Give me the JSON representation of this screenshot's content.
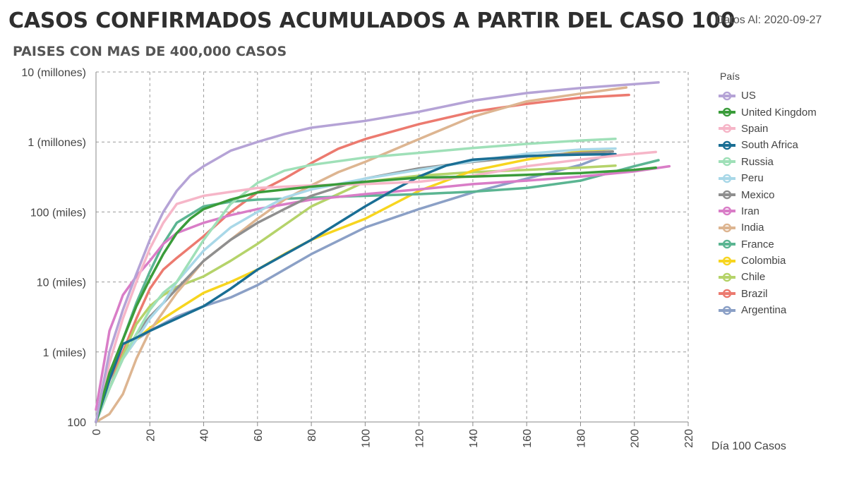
{
  "header": {
    "title": "CASOS CONFIRMADOS ACUMULADOS A PARTIR DEL CASO 100",
    "date_label": "Datos Al: 2020-09-27",
    "subtitle": "PAISES CON MAS DE 400,000 CASOS"
  },
  "legend": {
    "title": "País"
  },
  "chart_data": {
    "type": "line",
    "title": "CASOS CONFIRMADOS ACUMULADOS A PARTIR DEL CASO 100",
    "subtitle": "PAISES CON MAS DE 400,000 CASOS",
    "xlabel": "Día 100 Casos",
    "ylabel": "",
    "xlim": [
      0,
      220
    ],
    "ylim": [
      100,
      10000000
    ],
    "yscale": "log",
    "grid": true,
    "legend_position": "right",
    "x_ticks": [
      "0",
      "20",
      "40",
      "60",
      "80",
      "100",
      "120",
      "140",
      "160",
      "180",
      "200",
      "220"
    ],
    "y_ticks": [
      {
        "value": 100,
        "label": "100"
      },
      {
        "value": 1000,
        "label": "1 (miles)"
      },
      {
        "value": 10000,
        "label": "10 (miles)"
      },
      {
        "value": 100000,
        "label": "100 (miles)"
      },
      {
        "value": 1000000,
        "label": "1 (millones)"
      },
      {
        "value": 10000000,
        "label": "10 (millones)"
      }
    ],
    "series": [
      {
        "name": "US",
        "color": "#b5a3d6",
        "x": [
          0,
          5,
          10,
          15,
          20,
          25,
          30,
          35,
          40,
          50,
          60,
          70,
          80,
          100,
          120,
          140,
          160,
          180,
          200,
          209
        ],
        "y": [
          100,
          1000,
          4000,
          13000,
          40000,
          100000,
          200000,
          330000,
          450000,
          750000,
          1000000,
          1300000,
          1600000,
          2000000,
          2700000,
          3900000,
          5000000,
          5900000,
          6700000,
          7100000
        ]
      },
      {
        "name": "United Kingdom",
        "color": "#3a9c3a",
        "x": [
          0,
          5,
          10,
          15,
          20,
          25,
          30,
          35,
          40,
          50,
          60,
          80,
          100,
          120,
          140,
          160,
          180,
          200,
          208
        ],
        "y": [
          100,
          500,
          1500,
          4500,
          11000,
          25000,
          50000,
          80000,
          110000,
          150000,
          190000,
          230000,
          270000,
          310000,
          320000,
          340000,
          360000,
          400000,
          430000
        ]
      },
      {
        "name": "Spain",
        "color": "#f6b6c8",
        "x": [
          0,
          3,
          5,
          10,
          15,
          20,
          25,
          30,
          40,
          60,
          80,
          100,
          120,
          140,
          160,
          180,
          195,
          208
        ],
        "y": [
          100,
          300,
          700,
          3000,
          10000,
          30000,
          70000,
          130000,
          170000,
          220000,
          240000,
          250000,
          270000,
          330000,
          450000,
          560000,
          650000,
          720000
        ]
      },
      {
        "name": "South Africa",
        "color": "#1a6e94",
        "x": [
          0,
          5,
          10,
          15,
          20,
          30,
          40,
          50,
          60,
          80,
          100,
          110,
          120,
          130,
          140,
          160,
          180,
          193
        ],
        "y": [
          100,
          400,
          1300,
          1600,
          2000,
          3000,
          4500,
          8000,
          15000,
          40000,
          120000,
          200000,
          320000,
          460000,
          560000,
          630000,
          660000,
          670000
        ]
      },
      {
        "name": "Russia",
        "color": "#9fe0b8",
        "x": [
          0,
          5,
          10,
          15,
          20,
          25,
          30,
          40,
          50,
          60,
          70,
          80,
          100,
          120,
          140,
          160,
          180,
          193
        ],
        "y": [
          100,
          300,
          800,
          1800,
          4000,
          7000,
          10000,
          40000,
          130000,
          260000,
          390000,
          470000,
          600000,
          700000,
          820000,
          940000,
          1050000,
          1110000
        ]
      },
      {
        "name": "Peru",
        "color": "#a9d8e8",
        "x": [
          0,
          5,
          10,
          15,
          20,
          25,
          30,
          40,
          50,
          60,
          70,
          80,
          90,
          100,
          120,
          140,
          160,
          180,
          193
        ],
        "y": [
          100,
          300,
          800,
          1500,
          3000,
          5000,
          10000,
          28000,
          60000,
          100000,
          160000,
          210000,
          250000,
          300000,
          400000,
          530000,
          680000,
          780000,
          805000
        ]
      },
      {
        "name": "Mexico",
        "color": "#8f8f8f",
        "x": [
          0,
          5,
          10,
          15,
          20,
          25,
          30,
          40,
          50,
          60,
          70,
          80,
          100,
          120,
          140,
          160,
          180,
          192
        ],
        "y": [
          100,
          300,
          800,
          1800,
          3200,
          5000,
          8000,
          20000,
          40000,
          70000,
          110000,
          170000,
          300000,
          420000,
          520000,
          620000,
          700000,
          730000
        ]
      },
      {
        "name": "Iran",
        "color": "#d97dc7",
        "x": [
          0,
          3,
          5,
          8,
          10,
          15,
          20,
          25,
          30,
          40,
          50,
          60,
          80,
          100,
          120,
          140,
          160,
          180,
          200,
          213
        ],
        "y": [
          150,
          700,
          2000,
          4000,
          6500,
          12000,
          20000,
          35000,
          50000,
          70000,
          90000,
          110000,
          150000,
          180000,
          210000,
          250000,
          280000,
          320000,
          380000,
          450000
        ]
      },
      {
        "name": "India",
        "color": "#ddb591",
        "x": [
          0,
          5,
          10,
          15,
          20,
          30,
          40,
          50,
          60,
          70,
          80,
          90,
          100,
          120,
          140,
          160,
          180,
          197
        ],
        "y": [
          100,
          130,
          250,
          800,
          2000,
          7000,
          20000,
          40000,
          80000,
          150000,
          240000,
          370000,
          520000,
          1100000,
          2300000,
          3800000,
          4900000,
          6000000
        ]
      },
      {
        "name": "France",
        "color": "#5bb592",
        "x": [
          0,
          5,
          10,
          15,
          20,
          25,
          30,
          40,
          50,
          60,
          80,
          100,
          120,
          140,
          160,
          180,
          200,
          209
        ],
        "y": [
          100,
          500,
          1500,
          5000,
          14000,
          35000,
          70000,
          120000,
          140000,
          150000,
          160000,
          170000,
          180000,
          195000,
          220000,
          280000,
          450000,
          550000
        ]
      },
      {
        "name": "Colombia",
        "color": "#f7d51f",
        "x": [
          0,
          5,
          10,
          15,
          20,
          25,
          30,
          40,
          50,
          60,
          70,
          80,
          100,
          120,
          140,
          160,
          180,
          192
        ],
        "y": [
          100,
          300,
          800,
          1500,
          2200,
          3000,
          4000,
          7000,
          10000,
          15000,
          25000,
          40000,
          80000,
          200000,
          390000,
          560000,
          740000,
          800000
        ]
      },
      {
        "name": "Chile",
        "color": "#b5d36a",
        "x": [
          0,
          5,
          10,
          15,
          20,
          25,
          30,
          40,
          50,
          60,
          70,
          80,
          100,
          120,
          140,
          160,
          180,
          193
        ],
        "y": [
          100,
          300,
          900,
          2500,
          4500,
          6500,
          8500,
          12000,
          20000,
          35000,
          65000,
          120000,
          270000,
          330000,
          370000,
          400000,
          430000,
          460000
        ]
      },
      {
        "name": "Brazil",
        "color": "#ec7a6f",
        "x": [
          0,
          5,
          10,
          15,
          20,
          25,
          30,
          40,
          50,
          60,
          70,
          80,
          90,
          100,
          120,
          140,
          160,
          180,
          198
        ],
        "y": [
          100,
          400,
          1000,
          3000,
          8000,
          15000,
          22000,
          45000,
          100000,
          190000,
          300000,
          500000,
          800000,
          1100000,
          1800000,
          2700000,
          3500000,
          4300000,
          4700000
        ]
      },
      {
        "name": "Argentina",
        "color": "#8ba0c6",
        "x": [
          0,
          5,
          10,
          15,
          20,
          30,
          40,
          50,
          60,
          80,
          100,
          120,
          140,
          160,
          180,
          191
        ],
        "y": [
          100,
          300,
          1000,
          1500,
          2000,
          3200,
          4500,
          6000,
          9000,
          25000,
          60000,
          110000,
          190000,
          300000,
          470000,
          680000
        ]
      }
    ]
  }
}
